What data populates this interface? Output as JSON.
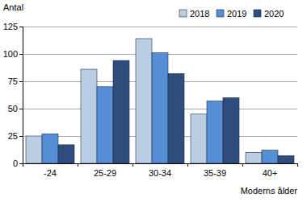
{
  "chart_data": {
    "type": "bar",
    "y_label": "Antal",
    "x_label": "Moderns ålder",
    "categories": [
      "-24",
      "25-29",
      "30-34",
      "35-39",
      "40+"
    ],
    "series": [
      {
        "name": "2018",
        "color": "#b9cde5",
        "values": [
          25,
          86,
          114,
          45,
          10
        ]
      },
      {
        "name": "2019",
        "color": "#558ed5",
        "values": [
          27,
          70,
          101,
          57,
          12
        ]
      },
      {
        "name": "2020",
        "color": "#2e4d7b",
        "values": [
          17,
          94,
          82,
          60,
          7
        ]
      }
    ],
    "ylim": [
      0,
      125
    ],
    "yticks": [
      0,
      25,
      50,
      75,
      100,
      125
    ],
    "grid": true,
    "legend": "top-right"
  }
}
